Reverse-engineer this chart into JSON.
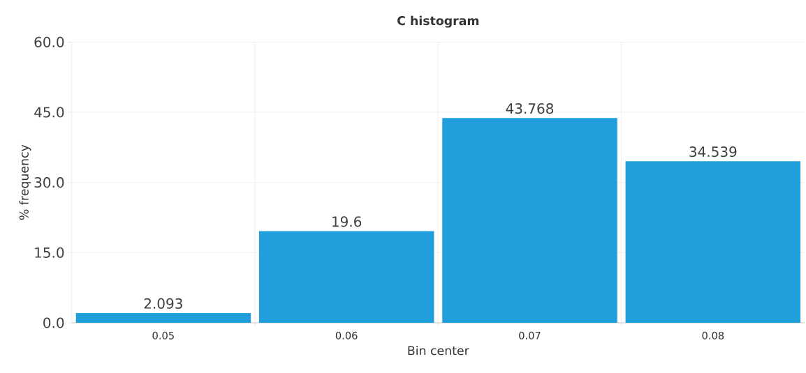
{
  "chart_data": {
    "type": "bar",
    "title": "C histogram",
    "xlabel": "Bin center",
    "ylabel": "% frequency",
    "categories": [
      "0.05",
      "0.06",
      "0.07",
      "0.08"
    ],
    "values": [
      2.093,
      19.6,
      43.768,
      34.539
    ],
    "color": "#219fdd",
    "ylim": [
      0,
      60
    ],
    "yticks": [
      {
        "value": 0,
        "label": "0.0"
      },
      {
        "value": 15,
        "label": "15.0"
      },
      {
        "value": 30,
        "label": "30.0"
      },
      {
        "value": 45,
        "label": "45.0"
      },
      {
        "value": 60,
        "label": "60.0"
      }
    ],
    "grid": true,
    "data_labels": true
  }
}
